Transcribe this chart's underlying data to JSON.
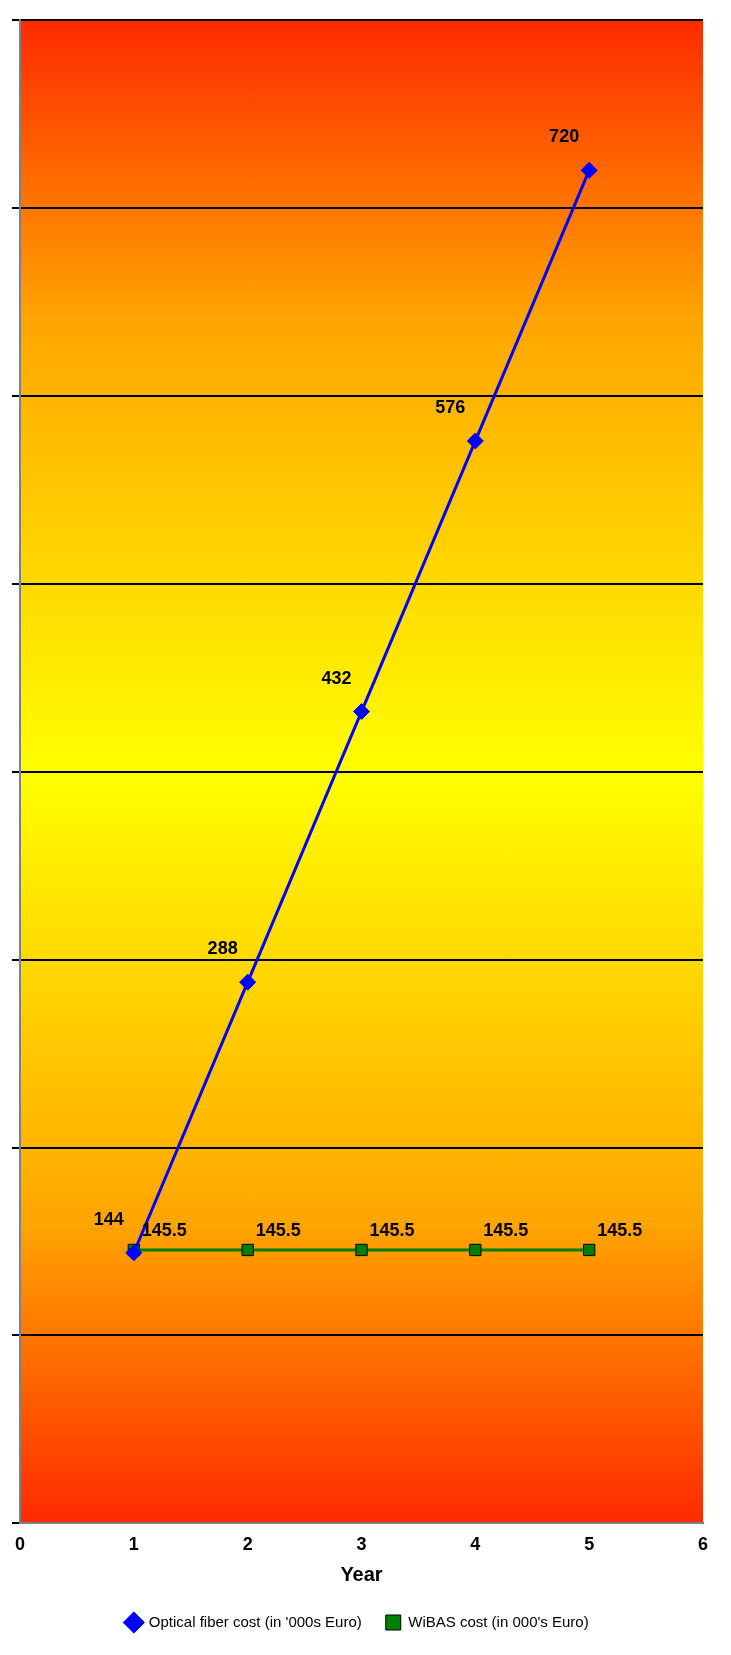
{
  "chart_data": {
    "type": "line",
    "xlabel": "Year",
    "x": [
      1,
      2,
      3,
      4,
      5
    ],
    "xlim": [
      0,
      6
    ],
    "xticks": [
      0,
      1,
      2,
      3,
      4,
      5,
      6
    ],
    "ylim": [
      0,
      800
    ],
    "yticks": [
      {
        "value": 0,
        "label": null
      },
      {
        "value": 100,
        "label": null
      },
      {
        "value": 200,
        "label": null
      },
      {
        "value": 300,
        "label": null
      },
      {
        "value": 400,
        "label": null
      },
      {
        "value": 500,
        "label": null
      },
      {
        "value": 600,
        "label": null
      },
      {
        "value": 700,
        "label": null
      },
      {
        "value": 800,
        "label": null
      }
    ],
    "series": [
      {
        "name": "Optical fiber cost (in '000s Euro)",
        "color": "#0000ff",
        "marker": "diamond",
        "values": [
          144,
          288,
          432,
          576,
          720
        ]
      },
      {
        "name": "WiBAS cost (in 000's Euro)",
        "color": "#008000",
        "marker": "square",
        "values": [
          145.5,
          145.5,
          145.5,
          145.5,
          145.5
        ]
      }
    ],
    "grid": "y",
    "legend": "bottom",
    "data_labels": true,
    "tick_labels": "x",
    "line_style": "solid"
  }
}
